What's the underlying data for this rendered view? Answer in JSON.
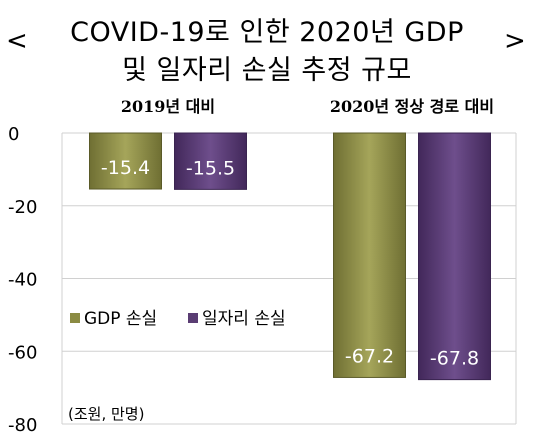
{
  "title": {
    "left_bracket": "<",
    "right_bracket": ">",
    "line1": "COVID-19로 인한 2020년 GDP",
    "line2": "및 일자리 손실 추정 규모"
  },
  "unit_note": "(조원, 만명)",
  "chart_data": {
    "type": "bar",
    "title": "COVID-19로 인한 2020년 GDP 및 일자리 손실 추정 규모",
    "categories": [
      "2019년 대비",
      "2020년 정상 경로 대비"
    ],
    "series": [
      {
        "name": "GDP 손실",
        "values": [
          -15.4,
          -67.2
        ],
        "color": "#8B8B43"
      },
      {
        "name": "일자리 손실",
        "values": [
          -15.5,
          -67.8
        ],
        "color": "#5A3D73"
      }
    ],
    "value_labels": [
      [
        "-15.4",
        "-67.2"
      ],
      [
        "-15.5",
        "-67.8"
      ]
    ],
    "y_ticks": [
      0,
      -20,
      -40,
      -60,
      -80
    ],
    "ylim": [
      -80,
      0
    ],
    "grid": true,
    "legend_position": "middle-left"
  }
}
